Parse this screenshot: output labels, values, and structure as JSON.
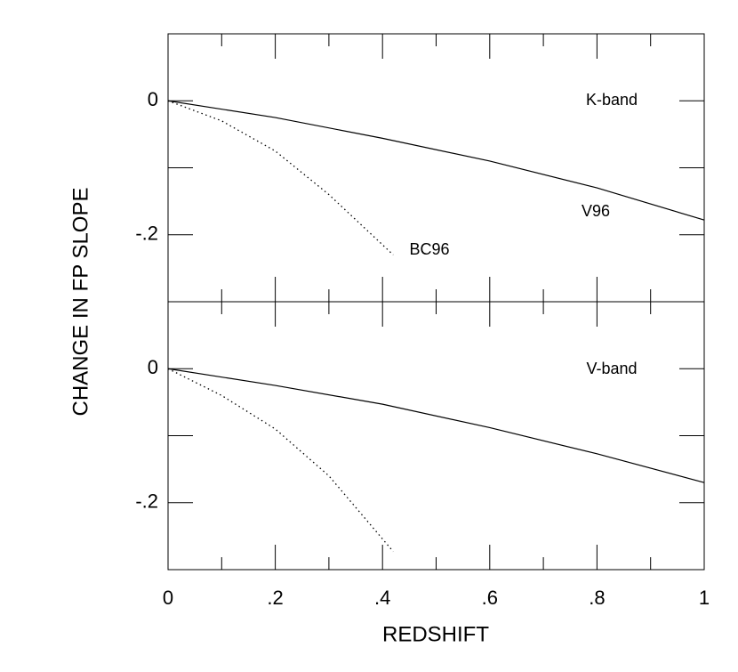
{
  "chart_data": [
    {
      "type": "line",
      "ylabel": "CHANGE IN FP SLOPE",
      "panel_label": "K-band",
      "xlim": [
        0,
        1
      ],
      "ylim": [
        -0.3,
        0.1
      ],
      "yticks": [
        0,
        {
          "value": -0.2,
          "label": "-.2"
        }
      ],
      "yminor": [
        -0.1
      ],
      "xmajor": [
        0.2,
        0.4,
        0.6,
        0.8
      ],
      "xminor": [
        0.1,
        0.3,
        0.5,
        0.7,
        0.9
      ],
      "series": [
        {
          "name": "V96",
          "color": "#000000",
          "style": "solid",
          "x": [
            0,
            0.2,
            0.4,
            0.6,
            0.8,
            1
          ],
          "values": [
            0,
            -0.025,
            -0.056,
            -0.09,
            -0.13,
            -0.178
          ]
        },
        {
          "name": "BC96",
          "color": "#000000",
          "style": "dotted",
          "x": [
            0,
            0.1,
            0.2,
            0.3,
            0.42
          ],
          "values": [
            0,
            -0.03,
            -0.075,
            -0.14,
            -0.23
          ]
        }
      ]
    },
    {
      "type": "line",
      "xlabel": "REDSHIFT",
      "panel_label": "V-band",
      "xlim": [
        0,
        1
      ],
      "ylim": [
        -0.3,
        0.1
      ],
      "yticks": [
        0,
        {
          "value": -0.2,
          "label": "-.2"
        }
      ],
      "yminor": [
        -0.1
      ],
      "xticks": [
        0,
        {
          "value": 0.2,
          "label": ".2"
        },
        {
          "value": 0.4,
          "label": ".4"
        },
        {
          "value": 0.6,
          "label": ".6"
        },
        {
          "value": 0.8,
          "label": ".8"
        },
        1
      ],
      "xminor": [
        0.1,
        0.3,
        0.5,
        0.7,
        0.9
      ],
      "series": [
        {
          "color": "#000000",
          "style": "solid",
          "x": [
            0,
            0.2,
            0.4,
            0.6,
            0.8,
            1
          ],
          "values": [
            0,
            -0.025,
            -0.053,
            -0.088,
            -0.127,
            -0.17
          ]
        },
        {
          "color": "#000000",
          "style": "dotted",
          "x": [
            0,
            0.1,
            0.2,
            0.3,
            0.42
          ],
          "values": [
            0,
            -0.04,
            -0.09,
            -0.16,
            -0.273
          ]
        }
      ]
    }
  ]
}
